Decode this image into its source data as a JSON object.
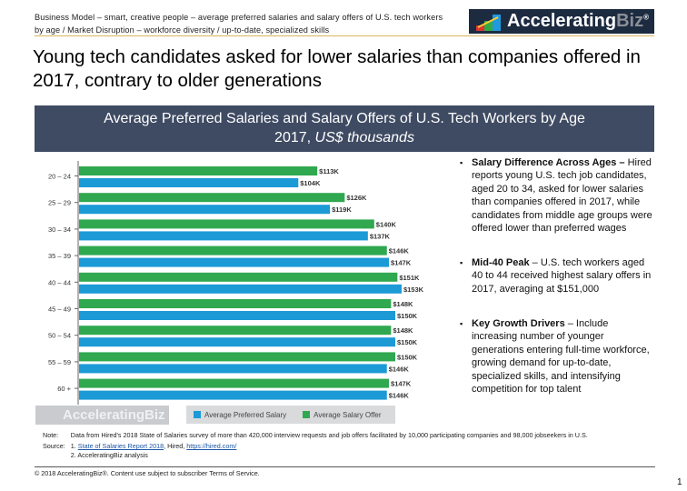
{
  "header": {
    "line1": "Business Model – smart, creative people – average preferred salaries and salary offers of U.S. tech workers",
    "line2": "by age / Market Disruption – workforce diversity / up-to-date, specialized skills"
  },
  "logo": {
    "brand_a": "Accelerating",
    "brand_b": "Biz",
    "reg": "®"
  },
  "title": "Young tech candidates asked for lower salaries than companies offered in 2017, contrary to older generations",
  "band": {
    "line1": "Average Preferred Salaries and Salary Offers of U.S. Tech Workers by Age",
    "line2_plain": "2017, ",
    "line2_italic": "US$ thousands"
  },
  "chart_data": {
    "type": "bar",
    "orientation": "horizontal",
    "categories": [
      "20 – 24",
      "25 – 29",
      "30 – 34",
      "35 – 39",
      "40 – 44",
      "45 – 49",
      "50 – 54",
      "55 – 59",
      "60 +"
    ],
    "series": [
      {
        "name": "Average Salary Offer",
        "color": "#2fa84f",
        "values": [
          113,
          126,
          140,
          146,
          151,
          148,
          148,
          150,
          147
        ],
        "labels": [
          "$113K",
          "$126K",
          "$140K",
          "$146K",
          "$151K",
          "$148K",
          "$148K",
          "$150K",
          "$147K"
        ]
      },
      {
        "name": "Average Preferred Salary",
        "color": "#1b9ad6",
        "values": [
          104,
          119,
          137,
          147,
          153,
          150,
          150,
          146,
          146
        ],
        "labels": [
          "$104K",
          "$119K",
          "$137K",
          "$147K",
          "$153K",
          "$150K",
          "$150K",
          "$146K",
          "$146K"
        ]
      }
    ],
    "xlim": [
      0,
      160
    ],
    "grid": false,
    "legend": "bottom"
  },
  "legend": {
    "preferred": "Average Preferred Salary",
    "offer": "Average Salary Offer"
  },
  "bullets": [
    {
      "head": "Salary Difference Across Ages –",
      "body": " Hired reports young U.S. tech job candidates, aged 20 to 34, asked for lower salaries than companies offered in 2017, while candidates from middle age groups were offered lower than preferred wages"
    },
    {
      "head": "Mid-40 Peak",
      "body": " – U.S. tech workers aged 40 to 44 received highest salary offers in 2017, averaging at $151,000"
    },
    {
      "head": "Key Growth Drivers",
      "body": " – Include increasing number of younger generations entering full-time workforce, growing demand for up-to-date, specialized skills, and intensifying competition for top talent"
    }
  ],
  "notes": {
    "note_label": "Note:",
    "note": "Data from Hired's 2018 State of Salaries survey of more than 420,000 interview requests and job offers facilitated by 10,000 participating companies and 98,000 jobseekers in U.S.",
    "source_label": "Source:",
    "src1_pre": "1. ",
    "src1_link": "State of Salaries Report 2018",
    "src1_mid": ", Hired, ",
    "src1_url": "https://hired.com/",
    "src2": "2. AcceleratingBiz analysis"
  },
  "copyright": "© 2018 AcceleratingBiz®. Content use subject to subscriber Terms of Service.",
  "page_number": "1"
}
